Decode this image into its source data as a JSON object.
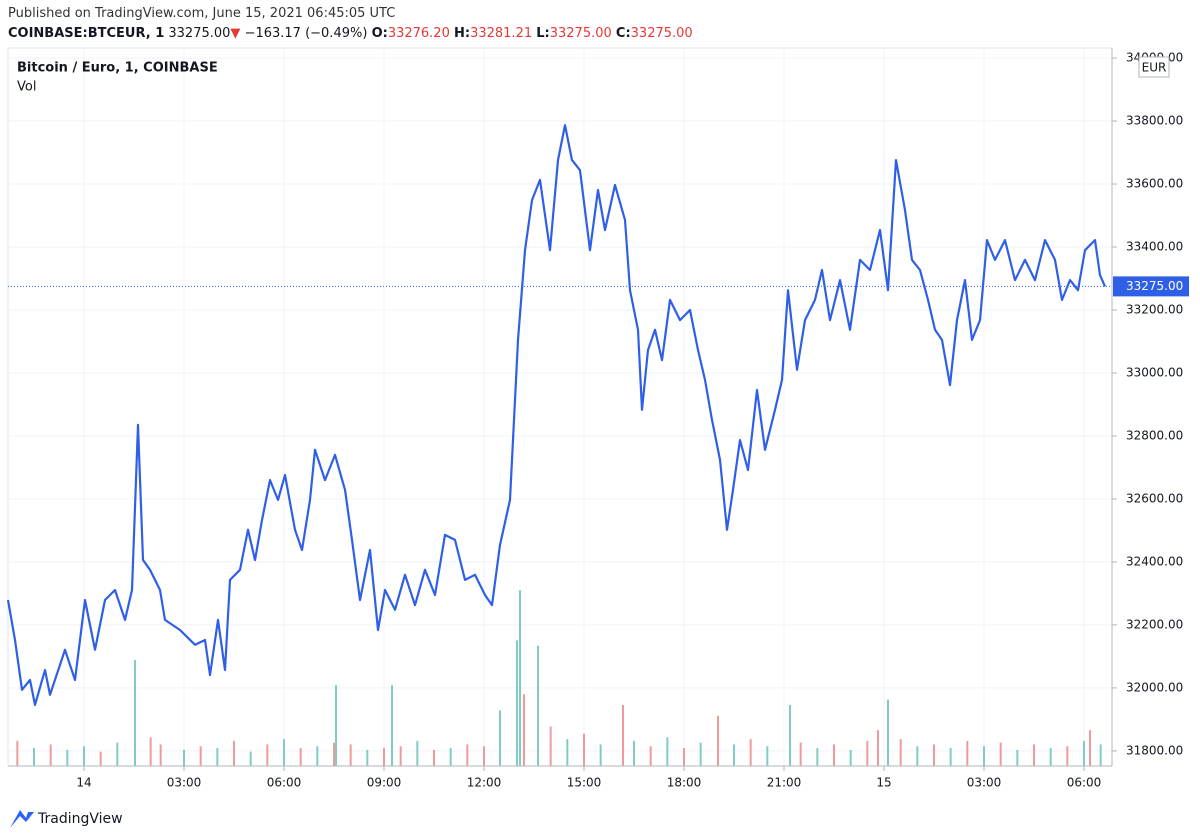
{
  "header": {
    "published": "Published on TradingView.com, June 15, 2021 06:45:05 UTC",
    "symbol": "COINBASE:BTCEUR, 1",
    "price": "33275.00",
    "arrow": "▼",
    "change": "−163.17 (−0.49%)",
    "o_label": "O:",
    "o": "33276.20",
    "h_label": "H:",
    "h": "33281.21",
    "l_label": "L:",
    "l": "33275.00",
    "c_label": "C:",
    "c": "33275.00"
  },
  "legend": {
    "title": "Bitcoin / Euro, 1, COINBASE",
    "vol": "Vol"
  },
  "currency": "EUR",
  "footer": "TradingView",
  "chart_data": {
    "type": "line",
    "xlim": [
      -2.28,
      30.84
    ],
    "xticks": [
      {
        "value": 0,
        "label": "14"
      },
      {
        "value": 3,
        "label": "03:00"
      },
      {
        "value": 6,
        "label": "06:00"
      },
      {
        "value": 9,
        "label": "09:00"
      },
      {
        "value": 12,
        "label": "12:00"
      },
      {
        "value": 15,
        "label": "15:00"
      },
      {
        "value": 18,
        "label": "18:00"
      },
      {
        "value": 21,
        "label": "21:00"
      },
      {
        "value": 24,
        "label": "15"
      },
      {
        "value": 27,
        "label": "03:00"
      },
      {
        "value": 30,
        "label": "06:00"
      }
    ],
    "ylim": [
      31752,
      34032
    ],
    "yticks": [
      {
        "value": 31800,
        "label": "31800.00"
      },
      {
        "value": 32000,
        "label": "32000.00"
      },
      {
        "value": 32200,
        "label": "32200.00"
      },
      {
        "value": 32400,
        "label": "32400.00"
      },
      {
        "value": 32600,
        "label": "32600.00"
      },
      {
        "value": 32800,
        "label": "32800.00"
      },
      {
        "value": 33000,
        "label": "33000.00"
      },
      {
        "value": 33200,
        "label": "33200.00"
      },
      {
        "value": 33400,
        "label": "33400.00"
      },
      {
        "value": 33600,
        "label": "33600.00"
      },
      {
        "value": 33800,
        "label": "33800.00"
      },
      {
        "value": 34000,
        "label": "34000.00"
      }
    ],
    "grid": true,
    "last_price": {
      "value": 33275,
      "label": "33275.00"
    },
    "series": [
      {
        "color": "#2f5fe6",
        "x": [
          -2.28,
          -2.07,
          -1.86,
          -1.62,
          -1.47,
          -1.17,
          -1.02,
          -0.57,
          -0.27,
          0.03,
          0.33,
          0.63,
          0.93,
          1.23,
          1.44,
          1.62,
          1.77,
          1.98,
          2.28,
          2.43,
          2.88,
          3.33,
          3.63,
          3.78,
          4.02,
          4.23,
          4.38,
          4.68,
          4.92,
          5.13,
          5.34,
          5.58,
          5.82,
          6.03,
          6.33,
          6.54,
          6.78,
          6.93,
          7.23,
          7.53,
          7.83,
          8.04,
          8.28,
          8.58,
          8.82,
          9.03,
          9.33,
          9.63,
          9.93,
          10.23,
          10.53,
          10.83,
          11.13,
          11.43,
          11.73,
          12.03,
          12.24,
          12.48,
          12.78,
          13.02,
          13.23,
          13.44,
          13.68,
          13.98,
          14.22,
          14.43,
          14.64,
          14.88,
          15.18,
          15.42,
          15.63,
          15.93,
          16.23,
          16.38,
          16.62,
          16.74,
          16.92,
          17.13,
          17.34,
          17.58,
          17.88,
          18.18,
          18.42,
          18.63,
          18.84,
          19.08,
          19.29,
          19.47,
          19.68,
          19.92,
          20.19,
          20.43,
          20.73,
          20.94,
          21.12,
          21.39,
          21.63,
          21.93,
          22.14,
          22.38,
          22.68,
          22.98,
          23.28,
          23.58,
          23.88,
          24.12,
          24.36,
          24.63,
          24.84,
          25.08,
          25.32,
          25.53,
          25.74,
          25.98,
          26.19,
          26.43,
          26.64,
          26.88,
          27.09,
          27.33,
          27.63,
          27.93,
          28.23,
          28.53,
          28.83,
          29.13,
          29.34,
          29.58,
          29.82,
          30.03,
          30.33,
          30.48,
          30.63
        ],
        "values": [
          32279,
          32152,
          31994,
          32025,
          31946,
          32057,
          31978,
          32121,
          32025,
          32279,
          32121,
          32279,
          32311,
          32216,
          32311,
          32835,
          32406,
          32375,
          32311,
          32216,
          32184,
          32137,
          32152,
          32041,
          32216,
          32057,
          32343,
          32375,
          32502,
          32406,
          32533,
          32660,
          32597,
          32676,
          32502,
          32438,
          32597,
          32756,
          32660,
          32740,
          32629,
          32470,
          32279,
          32438,
          32184,
          32311,
          32248,
          32359,
          32263,
          32375,
          32295,
          32486,
          32470,
          32343,
          32359,
          32295,
          32263,
          32454,
          32597,
          33105,
          33390,
          33549,
          33613,
          33390,
          33676,
          33787,
          33676,
          33644,
          33390,
          33581,
          33454,
          33597,
          33486,
          33263,
          33137,
          32883,
          33073,
          33137,
          33041,
          33232,
          33168,
          33200,
          33073,
          32978,
          32851,
          32724,
          32502,
          32629,
          32787,
          32692,
          32946,
          32756,
          32883,
          32978,
          33263,
          33010,
          33168,
          33232,
          33327,
          33168,
          33295,
          33137,
          33359,
          33327,
          33454,
          33263,
          33676,
          33517,
          33359,
          33327,
          33232,
          33137,
          33105,
          32962,
          33168,
          33295,
          33105,
          33168,
          33422,
          33359,
          33422,
          33295,
          33359,
          33295,
          33422,
          33359,
          33232,
          33295,
          33263,
          33390,
          33422,
          33311,
          33275
        ]
      }
    ],
    "volume": {
      "y2lim": [
        0,
        400
      ],
      "x": [
        -2.0,
        -1.5,
        -1.0,
        -0.5,
        0,
        0.5,
        1.0,
        1.53,
        2.0,
        2.3,
        3,
        3.5,
        4,
        4.5,
        5,
        5.5,
        6,
        6.5,
        7,
        7.5,
        7.56,
        8,
        8.5,
        9,
        9.24,
        9.5,
        10,
        10.5,
        11,
        11.5,
        12,
        12.48,
        12.99,
        13.08,
        13.2,
        13.62,
        14,
        14.5,
        15,
        15.5,
        16.17,
        16.5,
        17,
        17.5,
        18,
        18.5,
        19.02,
        19.5,
        20,
        20.5,
        21.18,
        21.5,
        22,
        22.5,
        23,
        23.5,
        23.82,
        24.12,
        24.5,
        25,
        25.5,
        26,
        26.5,
        27,
        27.5,
        28,
        28.5,
        29,
        29.5,
        30,
        30.18,
        30.5
      ],
      "values": [
        14,
        10,
        12,
        9,
        11,
        8,
        13,
        59,
        16,
        12,
        9,
        11,
        10,
        14,
        8,
        12,
        15,
        10,
        11,
        13,
        45,
        12,
        9,
        10,
        45,
        11,
        14,
        9,
        10,
        12,
        11,
        31,
        70,
        98,
        40,
        67,
        22,
        15,
        18,
        12,
        34,
        14,
        11,
        16,
        10,
        13,
        28,
        12,
        15,
        11,
        34,
        13,
        10,
        12,
        9,
        14,
        20,
        37,
        15,
        11,
        12,
        10,
        14,
        11,
        13,
        9,
        12,
        10,
        11,
        14,
        20,
        12
      ],
      "colors": [
        "#ef9a9a",
        "#80cbc4",
        "#ef9a9a",
        "#80cbc4",
        "#80cbc4",
        "#ef9a9a",
        "#80cbc4",
        "#80cbc4",
        "#ef9a9a",
        "#ef9a9a",
        "#80cbc4",
        "#ef9a9a",
        "#80cbc4",
        "#ef9a9a",
        "#80cbc4",
        "#ef9a9a",
        "#80cbc4",
        "#ef9a9a",
        "#80cbc4",
        "#ef9a9a",
        "#80cbc4",
        "#ef9a9a",
        "#80cbc4",
        "#ef9a9a",
        "#80cbc4",
        "#ef9a9a",
        "#80cbc4",
        "#ef9a9a",
        "#80cbc4",
        "#ef9a9a",
        "#ef9a9a",
        "#80cbc4",
        "#80cbc4",
        "#80cbc4",
        "#ef9a9a",
        "#80cbc4",
        "#ef9a9a",
        "#80cbc4",
        "#ef9a9a",
        "#80cbc4",
        "#ef9a9a",
        "#80cbc4",
        "#ef9a9a",
        "#80cbc4",
        "#ef9a9a",
        "#80cbc4",
        "#ef9a9a",
        "#80cbc4",
        "#ef9a9a",
        "#80cbc4",
        "#80cbc4",
        "#ef9a9a",
        "#80cbc4",
        "#ef9a9a",
        "#80cbc4",
        "#ef9a9a",
        "#ef9a9a",
        "#80cbc4",
        "#ef9a9a",
        "#80cbc4",
        "#ef9a9a",
        "#80cbc4",
        "#ef9a9a",
        "#80cbc4",
        "#ef9a9a",
        "#80cbc4",
        "#ef9a9a",
        "#80cbc4",
        "#ef9a9a",
        "#80cbc4",
        "#ef9a9a",
        "#80cbc4"
      ]
    }
  }
}
